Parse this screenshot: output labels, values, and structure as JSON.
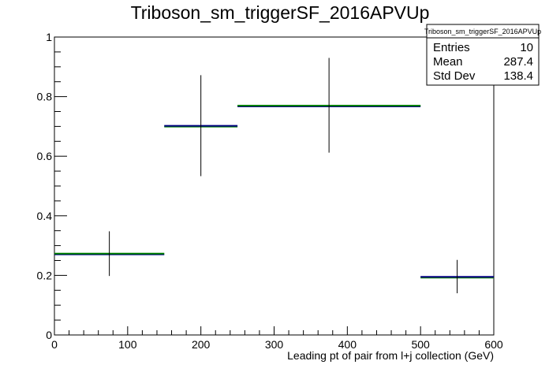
{
  "chart_data": {
    "type": "histogram",
    "title": "Triboson_sm_triggerSF_2016APVUp",
    "xlabel": "Leading pt of pair from l+j collection (GeV)",
    "ylabel": "",
    "xlim": [
      0,
      600
    ],
    "ylim": [
      0,
      1
    ],
    "x_ticks": [
      "0",
      "100",
      "200",
      "300",
      "400",
      "500",
      "600"
    ],
    "y_ticks": [
      "0",
      "0.2",
      "0.4",
      "0.6",
      "0.8",
      "1"
    ],
    "bins": [
      {
        "x_low": 0,
        "x_high": 150,
        "x_center": 75,
        "value": 0.273,
        "err_low": 0.198,
        "err_high": 0.348,
        "colors": [
          "#000080",
          "#008000"
        ]
      },
      {
        "x_low": 150,
        "x_high": 250,
        "x_center": 200,
        "value": 0.702,
        "err_low": 0.533,
        "err_high": 0.872,
        "colors": [
          "#008000",
          "#000080"
        ]
      },
      {
        "x_low": 250,
        "x_high": 500,
        "x_center": 375,
        "value": 0.77,
        "err_low": 0.612,
        "err_high": 0.93,
        "colors": [
          "#000080",
          "#008000"
        ]
      },
      {
        "x_low": 500,
        "x_high": 600,
        "x_center": 550,
        "value": 0.195,
        "err_low": 0.14,
        "err_high": 0.252,
        "colors": [
          "#008000",
          "#000080"
        ]
      }
    ],
    "stats_box": {
      "name": "Triboson_sm_triggerSF_2016APVUp",
      "rows": [
        {
          "label": "Entries",
          "value": "10"
        },
        {
          "label": "Mean",
          "value": "287.4"
        },
        {
          "label": "Std Dev",
          "value": "138.4"
        }
      ]
    },
    "grid": false,
    "legend": "top-right stats box"
  }
}
